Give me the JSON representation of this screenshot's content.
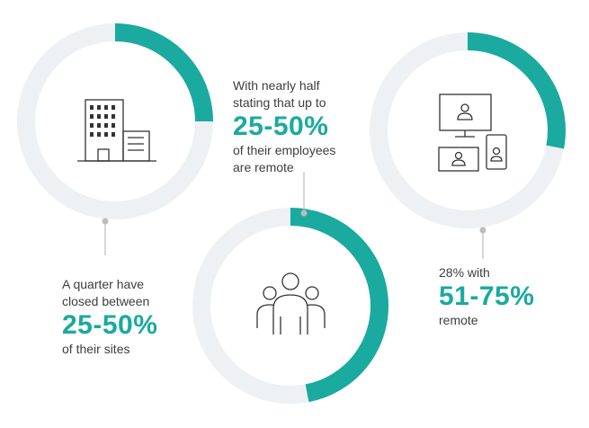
{
  "colors": {
    "accent": "#1aaa9f",
    "track": "#eef1f3",
    "text": "#3d3d3d",
    "connector": "#bcbcbc"
  },
  "chart_data": [
    {
      "type": "pie",
      "values": [
        25,
        75
      ],
      "icon": "office-building-icon",
      "text": {
        "line1": "A quarter have",
        "line2": "closed between",
        "big": "25-50%",
        "line3": "of their sites"
      }
    },
    {
      "type": "pie",
      "values": [
        47,
        53
      ],
      "icon": "group-of-people-icon",
      "text": {
        "line1": "With nearly half",
        "line2": "stating that up to",
        "big": "25-50%",
        "line3": "of their employees",
        "line4": "are remote"
      }
    },
    {
      "type": "pie",
      "values": [
        28,
        72
      ],
      "icon": "remote-video-call-icon",
      "text": {
        "line1": "28% with",
        "big": "51-75%",
        "line2": "remote"
      }
    }
  ]
}
